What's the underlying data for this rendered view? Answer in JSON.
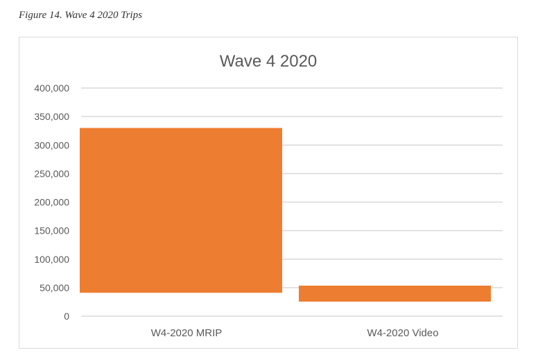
{
  "caption": "Figure 14. Wave 4 2020 Trips",
  "chart_data": {
    "type": "bar",
    "subtype": "floating",
    "title": "Wave 4 2020",
    "categories": [
      "W4-2020 MRIP",
      "W4-2020 Video"
    ],
    "series": [
      {
        "low": [
          41000,
          25500
        ],
        "high": [
          330000,
          53500
        ]
      }
    ],
    "ylim": [
      0,
      400000
    ],
    "yticks": [
      "0",
      "50,000",
      "100,000",
      "150,000",
      "200,000",
      "250,000",
      "300,000",
      "350,000",
      "400,000"
    ],
    "grid": true,
    "colors": {
      "bar": "#ED7D31",
      "grid": "#d9d9d9"
    }
  }
}
